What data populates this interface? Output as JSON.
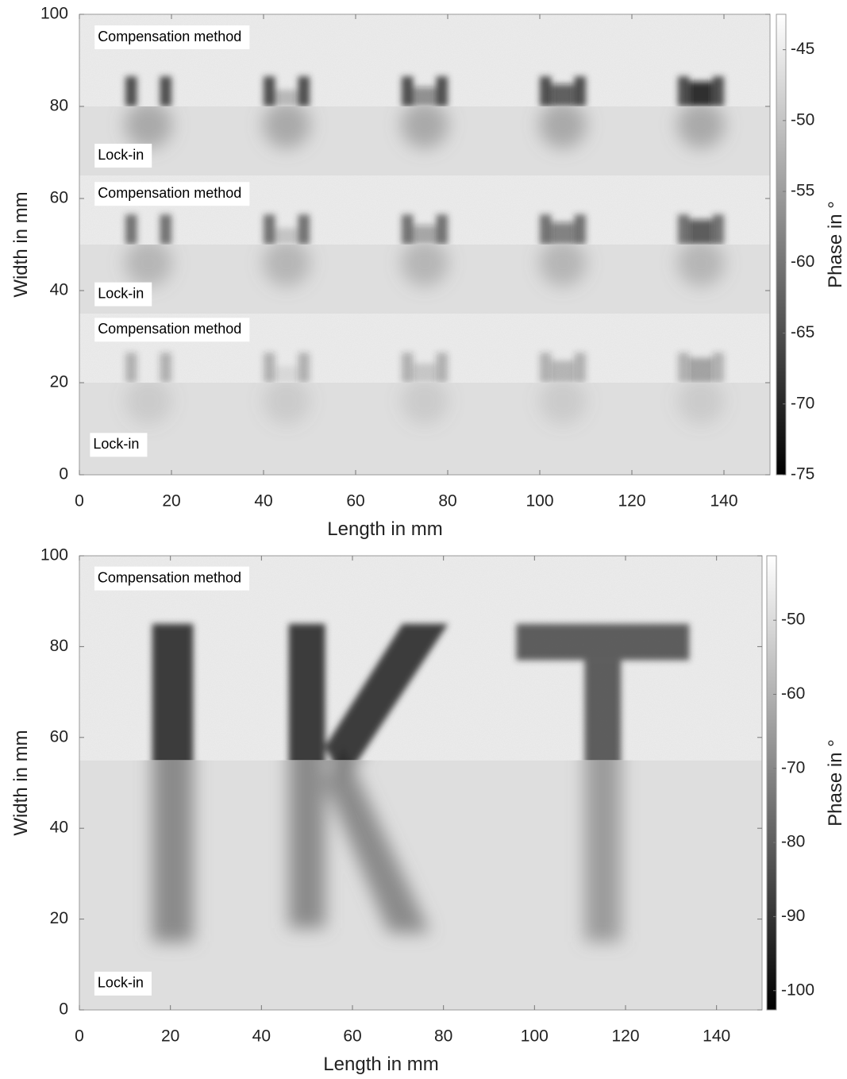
{
  "chart_data": [
    {
      "type": "heatmap",
      "xlabel": "Length in mm",
      "ylabel": "Width  in mm",
      "xlim": [
        0,
        150
      ],
      "xticks": [
        0,
        20,
        40,
        60,
        80,
        100,
        120,
        140
      ],
      "ylim": [
        0,
        100
      ],
      "yticks": [
        0,
        20,
        40,
        60,
        80,
        100
      ],
      "colorbar": {
        "label": "Phase in °",
        "colormap": "gray",
        "lim": [
          -75,
          -42.5
        ],
        "ticks": [
          -75,
          -70,
          -65,
          -60,
          -55,
          -50,
          -45
        ]
      },
      "annotations": [
        "Compensation method",
        "Lock-in",
        "Compensation method",
        "Lock-in",
        "Compensation method",
        "Lock-in"
      ]
    },
    {
      "type": "heatmap",
      "xlabel": "Length in mm",
      "ylabel": "Width  in mm",
      "xlim": [
        0,
        150
      ],
      "xticks": [
        0,
        20,
        40,
        60,
        80,
        100,
        120,
        140
      ],
      "ylim": [
        0,
        100
      ],
      "yticks": [
        0,
        20,
        40,
        60,
        80,
        100
      ],
      "colorbar": {
        "label": "Phase in °",
        "colormap": "gray",
        "lim": [
          -102.6,
          -41.3
        ],
        "ticks": [
          -100,
          -90,
          -80,
          -70,
          -60,
          -50
        ]
      },
      "annotations": [
        "Compensation method",
        "Lock-in"
      ]
    }
  ]
}
